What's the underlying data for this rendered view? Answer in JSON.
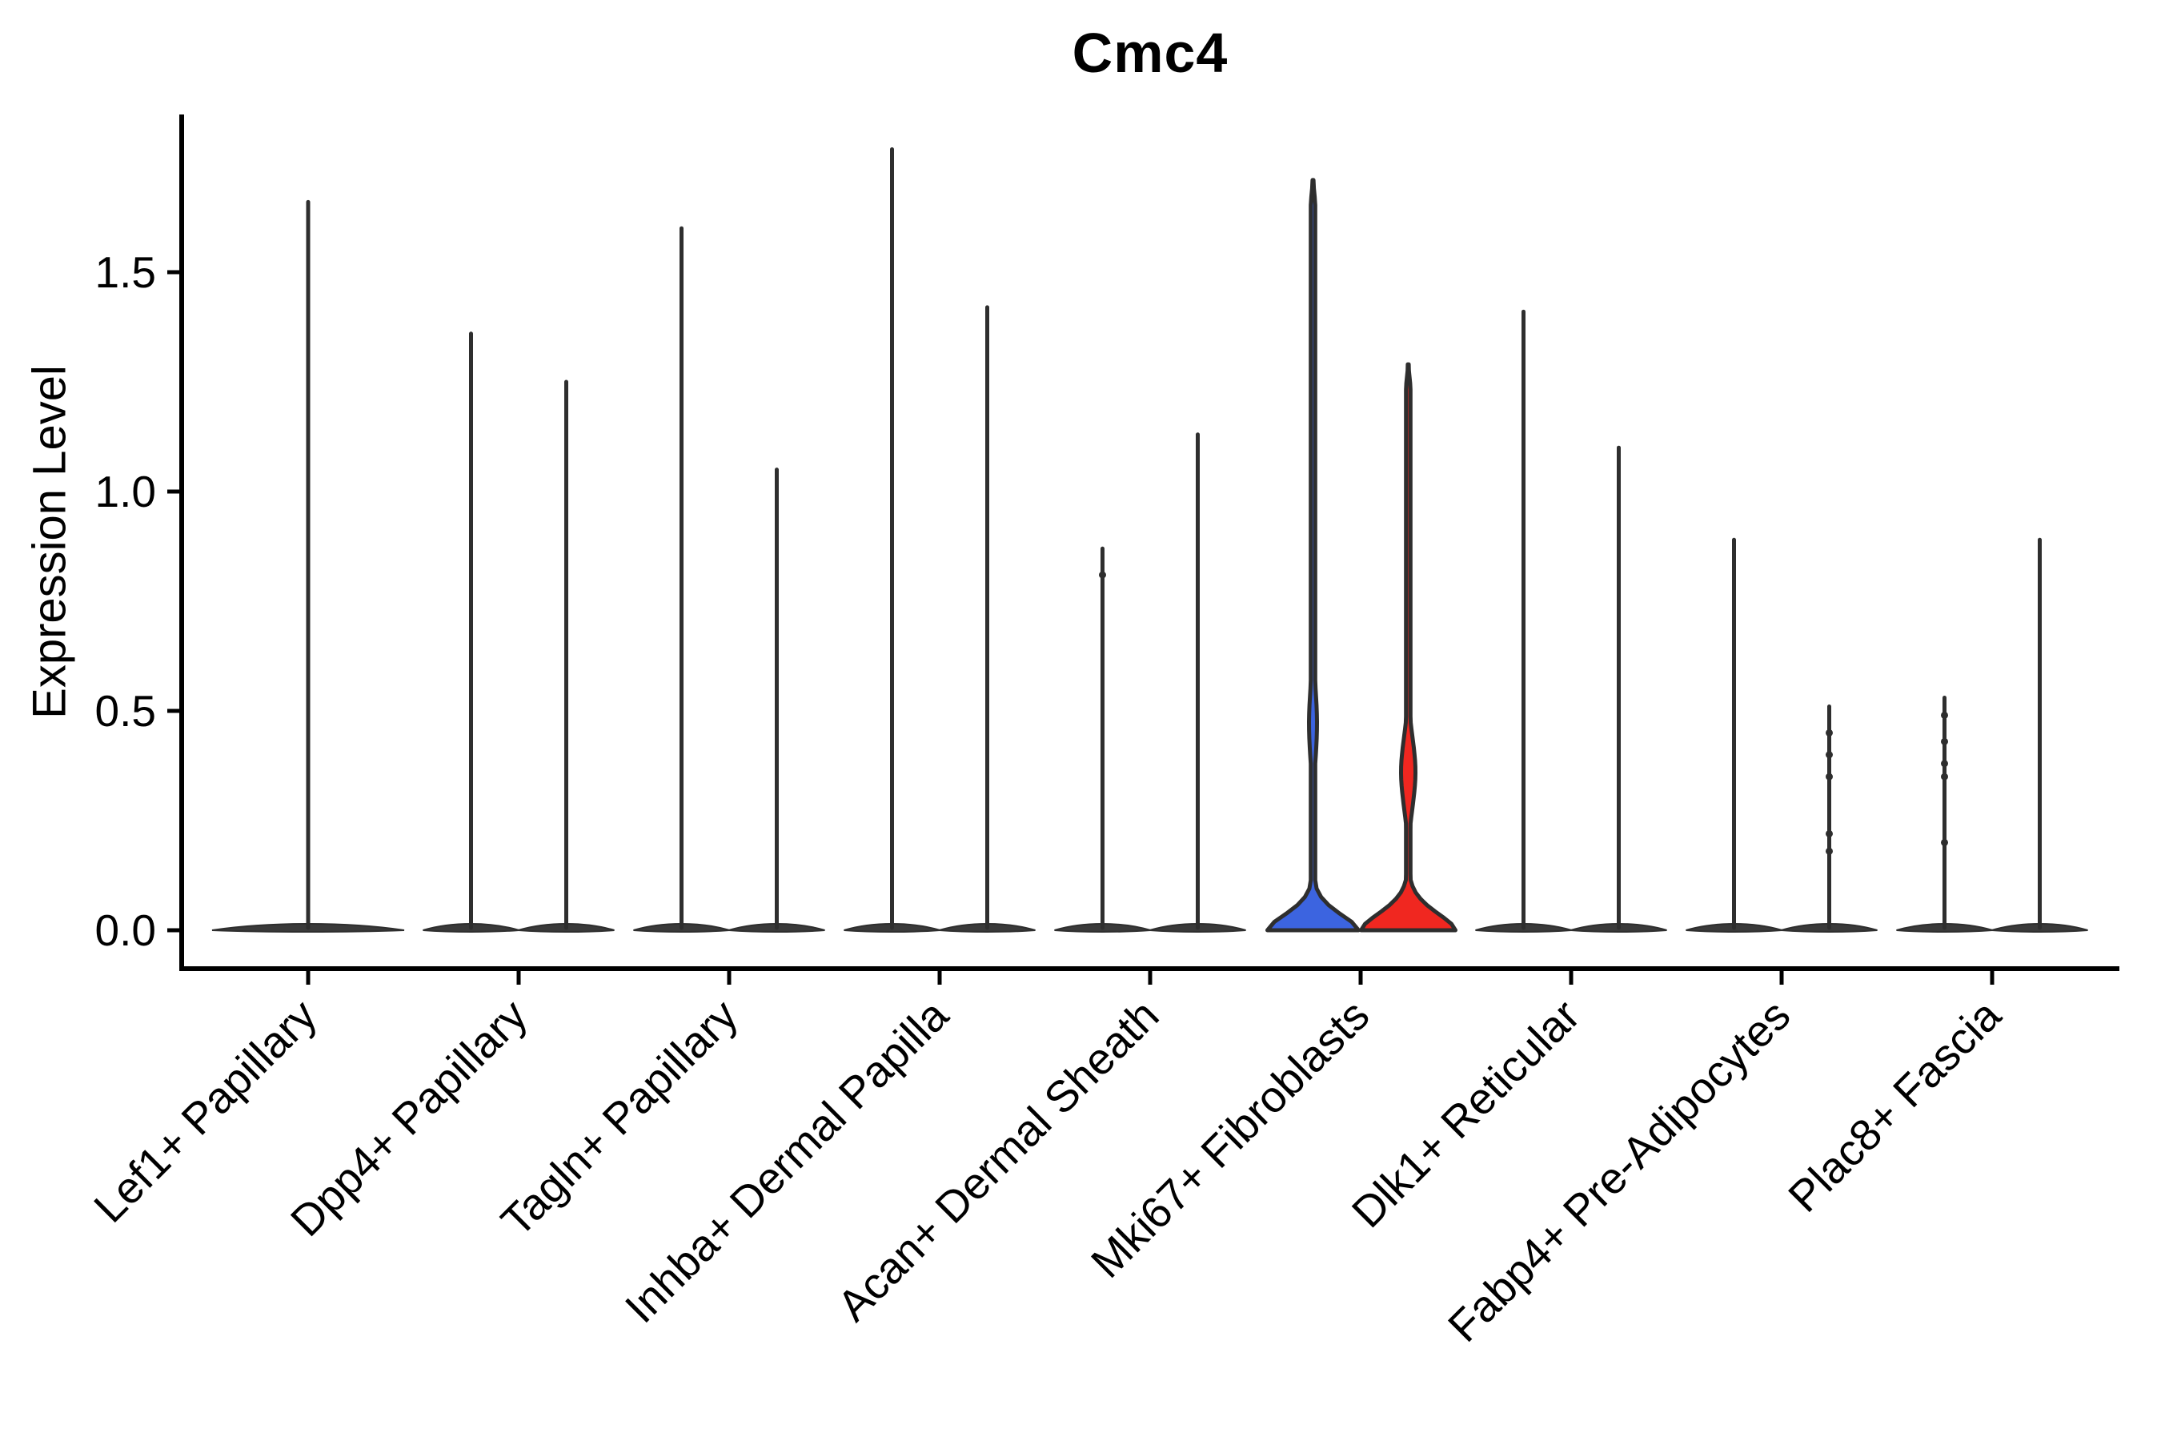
{
  "title": "Cmc4",
  "ylabel": "Expression Level",
  "chart_data": {
    "type": "violin",
    "title": "Cmc4",
    "subtitle": "",
    "xlabel": "",
    "ylabel": "Expression Level",
    "ylim": [
      0,
      1.86
    ],
    "yticks": [
      0.0,
      0.5,
      1.0,
      1.5
    ],
    "grid": false,
    "legend": "none",
    "colors": {
      "axis": "#000000",
      "violin_stroke": "#2E2E2E",
      "split_group_1_fill": "#3C64E0",
      "split_group_2_fill": "#F02720",
      "text": "#000000"
    },
    "categories": [
      "Lef1+ Papillary",
      "Dpp4+ Papillary",
      "Tagln+ Papillary",
      "Inhba+ Dermal Papilla",
      "Acan+ Dermal Sheath",
      "Mki67+ Fibroblasts",
      "Dlk1+ Reticular",
      "Fabp4+ Pre-Adipocytes",
      "Plac8+ Fascia"
    ],
    "violins": [
      {
        "category": "Lef1+ Papillary",
        "spikes": [
          {
            "pos": "center",
            "max": 1.66,
            "fill": null,
            "dots": []
          }
        ]
      },
      {
        "category": "Dpp4+ Papillary",
        "spikes": [
          {
            "pos": "left",
            "max": 1.36,
            "fill": null,
            "dots": []
          },
          {
            "pos": "right",
            "max": 1.25,
            "fill": null,
            "dots": []
          }
        ]
      },
      {
        "category": "Tagln+ Papillary",
        "spikes": [
          {
            "pos": "left",
            "max": 1.6,
            "fill": null,
            "dots": []
          },
          {
            "pos": "right",
            "max": 1.05,
            "fill": null,
            "dots": []
          }
        ]
      },
      {
        "category": "Inhba+ Dermal Papilla",
        "spikes": [
          {
            "pos": "left",
            "max": 1.78,
            "fill": null,
            "dots": []
          },
          {
            "pos": "right",
            "max": 1.42,
            "fill": null,
            "dots": []
          }
        ]
      },
      {
        "category": "Acan+ Dermal Sheath",
        "spikes": [
          {
            "pos": "left",
            "max": 0.87,
            "fill": null,
            "dots": [
              0.81
            ]
          },
          {
            "pos": "right",
            "max": 1.13,
            "fill": null,
            "dots": []
          }
        ]
      },
      {
        "category": "Mki67+ Fibroblasts",
        "spikes": [
          {
            "pos": "left",
            "max": 1.71,
            "fill": "#3C64E0",
            "base_half": 57,
            "base_decay": 0.055,
            "bulge": {
              "center": 0.47,
              "sigma": 0.12,
              "amp": 5
            },
            "dots": []
          },
          {
            "pos": "right",
            "max": 1.29,
            "fill": "#F02720",
            "base_half": 59,
            "base_decay": 0.06,
            "bulge": {
              "center": 0.36,
              "sigma": 0.11,
              "amp": 9
            },
            "dots": []
          }
        ]
      },
      {
        "category": "Dlk1+ Reticular",
        "spikes": [
          {
            "pos": "left",
            "max": 1.41,
            "fill": null,
            "dots": []
          },
          {
            "pos": "right",
            "max": 1.1,
            "fill": null,
            "dots": []
          }
        ]
      },
      {
        "category": "Fabp4+ Pre-Adipocytes",
        "spikes": [
          {
            "pos": "left",
            "max": 0.89,
            "fill": null,
            "dots": []
          },
          {
            "pos": "right",
            "max": 0.51,
            "fill": null,
            "dots": [
              0.45,
              0.4,
              0.35,
              0.22,
              0.18
            ]
          }
        ]
      },
      {
        "category": "Plac8+ Fascia",
        "spikes": [
          {
            "pos": "left",
            "max": 0.53,
            "fill": null,
            "dots": [
              0.49,
              0.43,
              0.38,
              0.35,
              0.2
            ]
          },
          {
            "pos": "right",
            "max": 0.89,
            "fill": null,
            "dots": []
          }
        ]
      }
    ]
  }
}
